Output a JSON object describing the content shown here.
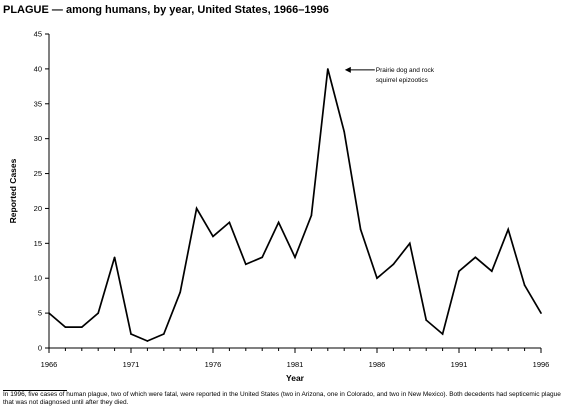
{
  "chart_data": {
    "type": "line",
    "title": "PLAGUE — among humans, by year, United States, 1966–1996",
    "xlabel": "Year",
    "ylabel": "Reported Cases",
    "ylim": [
      0,
      45
    ],
    "yticks": [
      0,
      5,
      10,
      15,
      20,
      25,
      30,
      35,
      40,
      45
    ],
    "xlim": [
      1966,
      1996
    ],
    "xticks": [
      1966,
      1971,
      1976,
      1981,
      1986,
      1991,
      1996
    ],
    "grid": false,
    "series": [
      {
        "x": [
          1966,
          1967,
          1968,
          1969,
          1970,
          1971,
          1972,
          1973,
          1974,
          1975,
          1976,
          1977,
          1978,
          1979,
          1980,
          1981,
          1982,
          1983,
          1984,
          1985,
          1986,
          1987,
          1988,
          1989,
          1990,
          1991,
          1992,
          1993,
          1994,
          1995,
          1996
        ],
        "values": [
          5,
          3,
          3,
          5,
          13,
          2,
          1,
          2,
          8,
          20,
          16,
          18,
          12,
          13,
          18,
          13,
          19,
          40,
          31,
          17,
          10,
          12,
          15,
          4,
          2,
          11,
          13,
          11,
          17,
          9,
          5
        ]
      }
    ],
    "annotations": [
      {
        "text_lines": [
          "Prairie dog and rock",
          "squirrel epizootics"
        ],
        "x": 1983,
        "y": 40
      }
    ]
  },
  "footnote": "In 1996, five cases of human plague, two of which were fatal, were reported in the United States (two in Arizona, one in Colorado, and two in New Mexico). Both decedents had septicemic plague that was not diagnosed until after they died."
}
